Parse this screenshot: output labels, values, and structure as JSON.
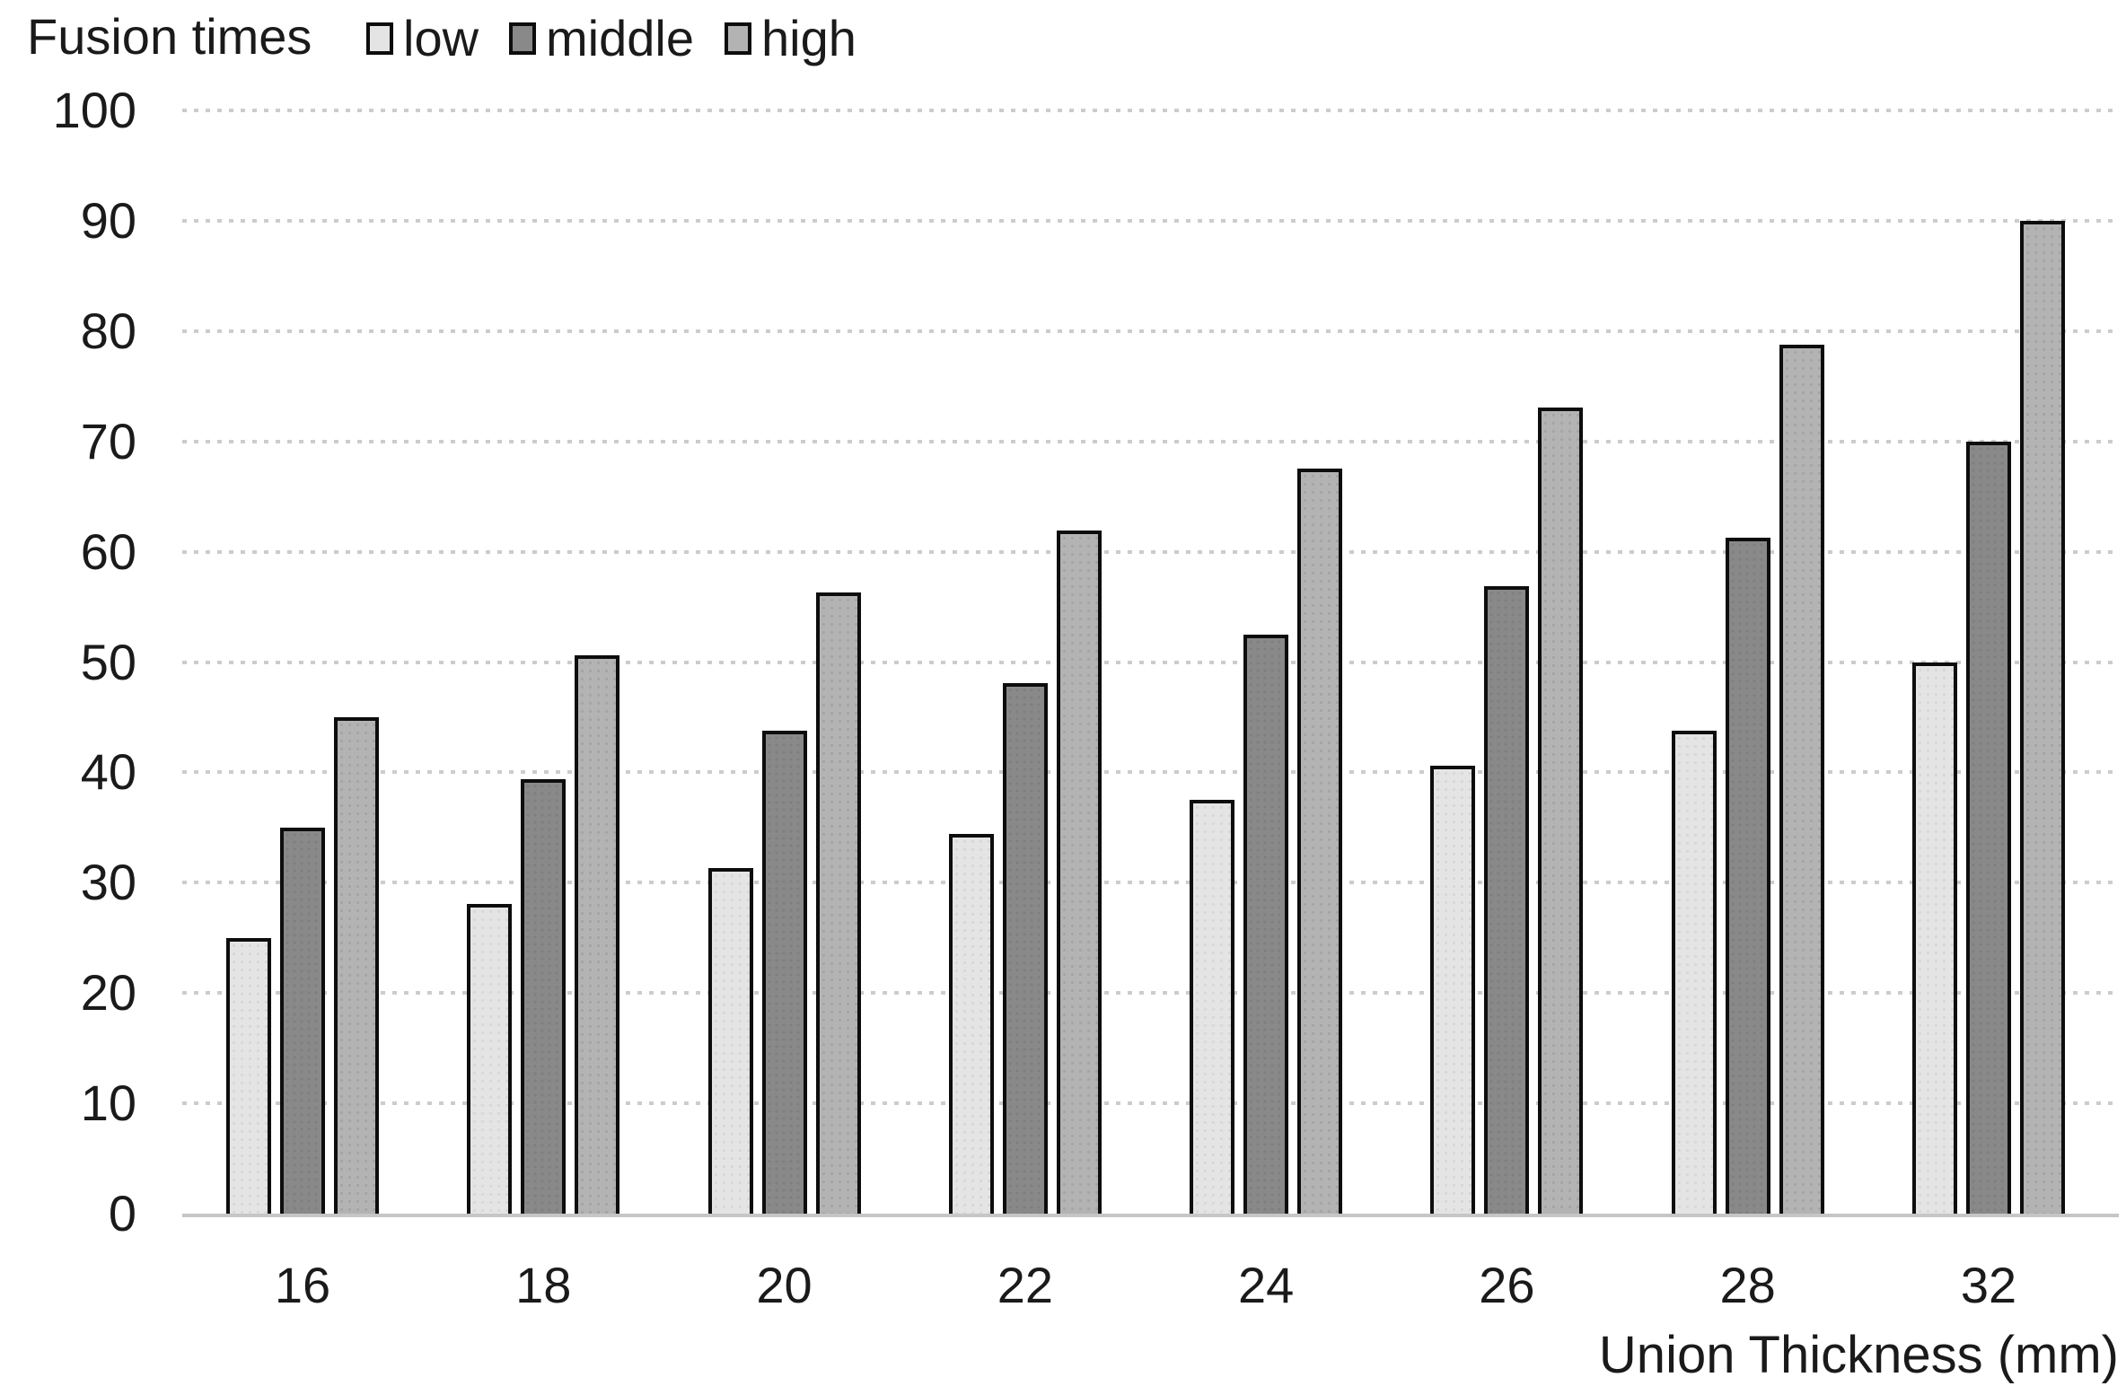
{
  "header": {
    "title": "Fusion times"
  },
  "legend": {
    "items": [
      {
        "label": "low",
        "color": "#e4e4e4"
      },
      {
        "label": "middle",
        "color": "#898989"
      },
      {
        "label": "high",
        "color": "#b3b3b3"
      }
    ]
  },
  "y_axis": {
    "ticks": [
      "100",
      "90",
      "80",
      "70",
      "60",
      "50",
      "40",
      "30",
      "20",
      "10",
      "0"
    ]
  },
  "x_axis": {
    "title": "Union Thickness (mm)",
    "labels": [
      "16",
      "18",
      "20",
      "22",
      "24",
      "26",
      "28",
      "32"
    ]
  },
  "chart_data": {
    "type": "bar",
    "title": "Fusion times",
    "categories": [
      16,
      18,
      20,
      22,
      24,
      26,
      28,
      32
    ],
    "series": [
      {
        "name": "low",
        "color": "#e4e4e4",
        "values": [
          25,
          28.1,
          31.3,
          34.4,
          37.5,
          40.6,
          43.8,
          50
        ]
      },
      {
        "name": "middle",
        "color": "#898989",
        "values": [
          35,
          39.4,
          43.8,
          48.1,
          52.5,
          56.9,
          61.3,
          70
        ]
      },
      {
        "name": "high",
        "color": "#b3b3b3",
        "values": [
          45,
          50.6,
          56.3,
          61.9,
          67.5,
          73.1,
          78.8,
          90
        ]
      }
    ],
    "xlabel": "Union Thickness (mm)",
    "ylabel": "Fusion times",
    "ylim": [
      0,
      100
    ],
    "ytick_step": 10,
    "grid": "horizontal dotted",
    "legend_position": "top"
  },
  "colors": {
    "gridline": "#cccccc",
    "axis_line": "#c6c6c6",
    "bar_border": "#0d0d0d",
    "text": "#1a1a1a"
  }
}
